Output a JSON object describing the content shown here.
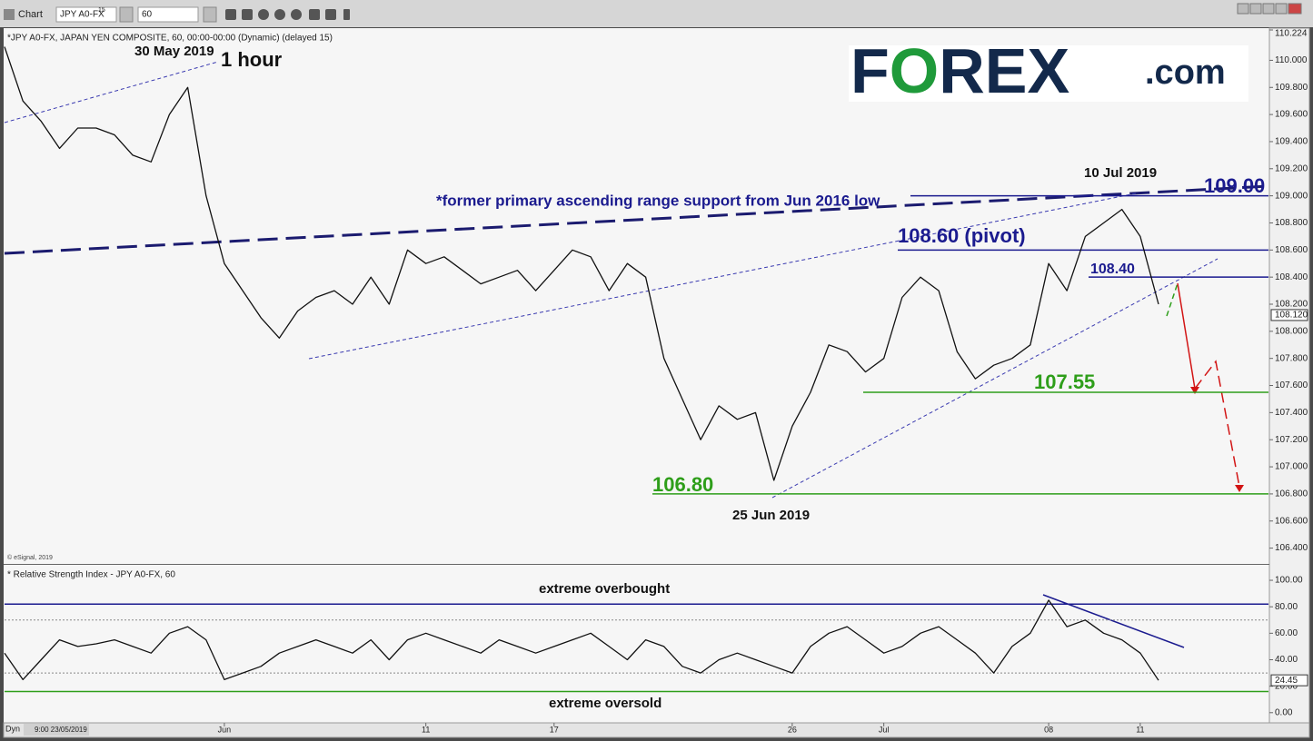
{
  "toolbar": {
    "title": "Chart",
    "symbol": "JPY A0-FX",
    "symbol_sup": "15",
    "interval": "60"
  },
  "header": "*JPY A0-FX, JAPAN YEN COMPOSITE, 60, 00:00-00:00 (Dynamic) (delayed 15)",
  "copyright": "© eSignal, 2019",
  "logo": {
    "parts": [
      "F",
      "O",
      "REX"
    ],
    "domain": ".com"
  },
  "footer": {
    "mode": "Dyn",
    "start": "9:00 23/05/2019"
  },
  "annotations": {
    "peak_date": "30 May 2019",
    "timeframe": "1 hour",
    "high_date": "10 Jul 2019",
    "support_note": "*former  primary ascending range support from Jun 2016 low",
    "low_date": "25 Jun 2019",
    "overbought": "extreme overbought",
    "oversold": "extreme oversold"
  },
  "chart_data": [
    {
      "type": "line",
      "color": "#111111",
      "values": [
        110.1,
        109.7,
        109.55,
        109.35,
        109.5,
        109.5,
        109.45,
        109.3,
        109.25,
        109.6,
        109.8,
        109.0,
        108.5,
        108.3,
        108.1,
        107.95,
        108.15,
        108.25,
        108.3,
        108.2,
        108.4,
        108.2,
        108.6,
        108.5,
        108.55,
        108.45,
        108.35,
        108.4,
        108.45,
        108.3,
        108.45,
        108.6,
        108.55,
        108.3,
        108.5,
        108.4,
        107.8,
        107.5,
        107.2,
        107.45,
        107.35,
        107.4,
        106.9,
        107.3,
        107.55,
        107.9,
        107.85,
        107.7,
        107.8,
        108.25,
        108.4,
        108.3,
        107.85,
        107.65,
        107.75,
        107.8,
        107.9,
        108.5,
        108.3,
        108.7,
        108.8,
        108.9,
        108.7,
        108.2,
        null,
        null,
        null,
        null,
        null,
        null
      ],
      "ylim": [
        106.29,
        110.224
      ],
      "yticks": [
        {
          "value": 106.4,
          "label": "106.400"
        },
        {
          "value": 106.6,
          "label": "106.600"
        },
        {
          "value": 106.8,
          "label": "106.800"
        },
        {
          "value": 107.0,
          "label": "107.000"
        },
        {
          "value": 107.2,
          "label": "107.200"
        },
        {
          "value": 107.4,
          "label": "107.400"
        },
        {
          "value": 107.6,
          "label": "107.600"
        },
        {
          "value": 107.8,
          "label": "107.800"
        },
        {
          "value": 108.0,
          "label": "108.000"
        },
        {
          "value": 108.2,
          "label": "108.200"
        },
        {
          "value": 108.4,
          "label": "108.400"
        },
        {
          "value": 108.6,
          "label": "108.600"
        },
        {
          "value": 108.8,
          "label": "108.800"
        },
        {
          "value": 109.0,
          "label": "109.000"
        },
        {
          "value": 109.2,
          "label": "109.200"
        },
        {
          "value": 109.4,
          "label": "109.400"
        },
        {
          "value": 109.6,
          "label": "109.600"
        },
        {
          "value": 109.8,
          "label": "109.800"
        },
        {
          "value": 110.0,
          "label": "110.000"
        },
        {
          "value": 110.224,
          "label": "110.224"
        }
      ],
      "last": {
        "value": 108.12,
        "label": "108.120"
      },
      "levels": [
        {
          "value": 109.0,
          "label": "109.00",
          "color": "#1b1b8f"
        },
        {
          "value": 108.6,
          "label": "108.60 (pivot)",
          "color": "#1b1b8f"
        },
        {
          "value": 108.4,
          "label": "108.40",
          "color": "#1b1b8f"
        },
        {
          "value": 107.55,
          "label": "107.55",
          "color": "#2e9e1a"
        },
        {
          "value": 106.8,
          "label": "106.80",
          "color": "#2e9e1a"
        }
      ]
    },
    {
      "type": "line",
      "title": "* Relative Strength Index - JPY A0-FX, 60",
      "color": "#111111",
      "categories": [
        null,
        null,
        null,
        null,
        null,
        null,
        null,
        null,
        null,
        null,
        null,
        null,
        "Jun",
        null,
        null,
        null,
        null,
        null,
        null,
        null,
        null,
        null,
        null,
        "11",
        null,
        null,
        null,
        null,
        null,
        null,
        "17",
        null,
        null,
        null,
        null,
        null,
        null,
        null,
        null,
        null,
        null,
        null,
        null,
        "26",
        null,
        null,
        null,
        null,
        "Jul",
        null,
        null,
        null,
        null,
        null,
        null,
        null,
        null,
        "08",
        null,
        null,
        null,
        null,
        "11",
        null,
        null,
        null,
        null,
        null,
        null,
        null
      ],
      "values": [
        45,
        25,
        40,
        55,
        50,
        52,
        55,
        50,
        45,
        60,
        65,
        55,
        25,
        30,
        35,
        45,
        50,
        55,
        50,
        45,
        55,
        40,
        55,
        60,
        55,
        50,
        45,
        55,
        50,
        45,
        50,
        55,
        60,
        50,
        40,
        55,
        50,
        35,
        30,
        40,
        45,
        40,
        35,
        30,
        50,
        60,
        65,
        55,
        45,
        50,
        60,
        65,
        55,
        45,
        30,
        50,
        60,
        85,
        65,
        70,
        60,
        55,
        45,
        24.45,
        null,
        null,
        null,
        null,
        null,
        null
      ],
      "ylim": [
        -7,
        111
      ],
      "yticks": [
        {
          "value": 0,
          "label": "0.00"
        },
        {
          "value": 20,
          "label": "20.00"
        },
        {
          "value": 40,
          "label": "40.00"
        },
        {
          "value": 60,
          "label": "60.00"
        },
        {
          "value": 80,
          "label": "80.00"
        },
        {
          "value": 100,
          "label": "100.00"
        }
      ],
      "last": {
        "value": 24.45,
        "label": "24.45"
      },
      "levels": [
        {
          "value": 82,
          "color": "#1b1b8f"
        },
        {
          "value": 70,
          "color": "#888888"
        },
        {
          "value": 30,
          "color": "#888888"
        },
        {
          "value": 16,
          "color": "#2e9e1a"
        }
      ]
    }
  ]
}
